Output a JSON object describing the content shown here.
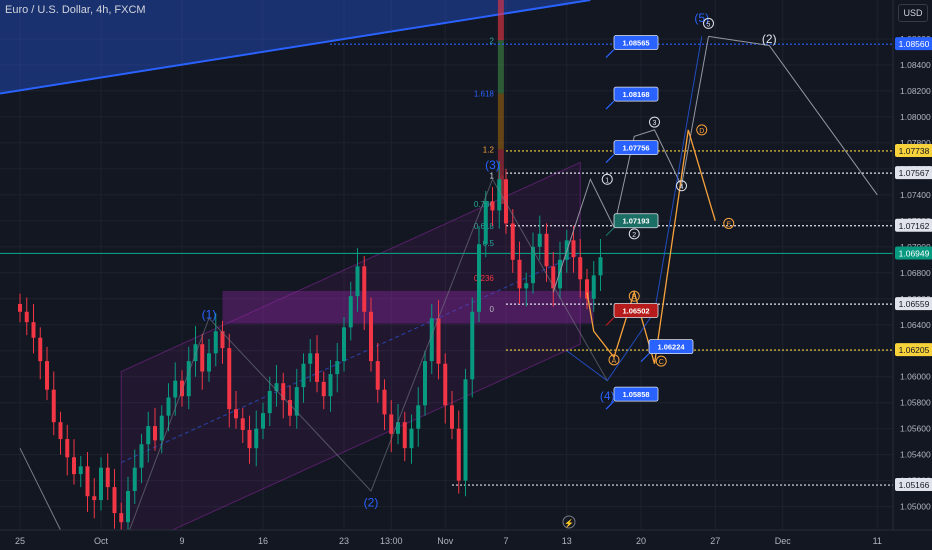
{
  "header": {
    "title": "Euro / U.S. Dollar, 4h, FXCM",
    "currency": "USD"
  },
  "colors": {
    "bg": "#131722",
    "up": "#089981",
    "down": "#f23645",
    "blue": "#2962ff",
    "orange": "#f7a23b",
    "white": "#e0e3eb",
    "purple": "#9c27b0",
    "grid": "#1e222d"
  },
  "chart_data": {
    "type": "candlestick",
    "title": "Euro / U.S. Dollar, 4h, FXCM",
    "ylabel": "USD",
    "ylim": [
      1.0482,
      1.089
    ],
    "price_ticks": [
      "1.08600",
      "1.08400",
      "1.08200",
      "1.08000",
      "1.07800",
      "1.07600",
      "1.07400",
      "1.07200",
      "1.07000",
      "1.06800",
      "1.06600",
      "1.06400",
      "1.06200",
      "1.06000",
      "1.05800",
      "1.05600",
      "1.05400",
      "1.05200",
      "1.05000"
    ],
    "time_ticks": [
      {
        "label": "25",
        "idx": 0
      },
      {
        "label": "Oct",
        "idx": 12
      },
      {
        "label": "9",
        "idx": 24
      },
      {
        "label": "16",
        "idx": 36
      },
      {
        "label": "23",
        "idx": 48
      },
      {
        "label": "13:00",
        "idx": 55
      },
      {
        "label": "Nov",
        "idx": 63
      },
      {
        "label": "7",
        "idx": 72
      },
      {
        "label": "13",
        "idx": 81
      },
      {
        "label": "20",
        "idx": 92
      },
      {
        "label": "27",
        "idx": 103
      },
      {
        "label": "Dec",
        "idx": 113
      },
      {
        "label": "11",
        "idx": 127
      }
    ],
    "candles_anchor": {
      "start_idx": 0,
      "x_step_hint": "time index"
    },
    "close_series": [
      1.065,
      1.0642,
      1.063,
      1.0612,
      1.059,
      1.0565,
      1.0552,
      1.0538,
      1.0525,
      1.0531,
      1.0508,
      1.0505,
      1.053,
      1.0515,
      1.0495,
      1.0488,
      1.0512,
      1.053,
      1.0548,
      1.0562,
      1.0551,
      1.057,
      1.0584,
      1.0597,
      1.0585,
      1.0612,
      1.0625,
      1.0604,
      1.0618,
      1.0635,
      1.0622,
      1.0575,
      1.0568,
      1.0559,
      1.0545,
      1.056,
      1.0572,
      1.0589,
      1.0595,
      1.0582,
      1.057,
      1.0592,
      1.061,
      1.0618,
      1.0596,
      1.0585,
      1.0602,
      1.0612,
      1.0638,
      1.0662,
      1.0685,
      1.065,
      1.0612,
      1.059,
      1.0571,
      1.0556,
      1.0565,
      1.0545,
      1.056,
      1.0578,
      1.0612,
      1.0645,
      1.061,
      1.0578,
      1.056,
      1.052,
      1.0598,
      1.065,
      1.0702,
      1.0735,
      1.0728,
      1.0752,
      1.0718,
      1.069,
      1.0668,
      1.0672,
      1.07,
      1.071,
      1.0685,
      1.0668,
      1.069,
      1.0705,
      1.0692,
      1.0675,
      1.066,
      1.0678,
      1.0692
    ],
    "levels": [
      {
        "price": 1.0856,
        "label": "1.08560",
        "color": "#2962ff",
        "style": "dotted"
      },
      {
        "price": 1.07738,
        "label": "1.07738",
        "color": "#f7d23b",
        "style": "dotted"
      },
      {
        "price": 1.07567,
        "label": "1.07567",
        "color": "#e0e3eb",
        "style": "dotted"
      },
      {
        "price": 1.07162,
        "label": "1.07162",
        "color": "#e0e3eb",
        "style": "dotted"
      },
      {
        "price": 1.06949,
        "label": "1.06949",
        "color": "#089981",
        "style": "solid"
      },
      {
        "price": 1.06559,
        "label": "1.06559",
        "color": "#e0e3eb",
        "style": "dotted"
      },
      {
        "price": 1.06205,
        "label": "1.06205",
        "color": "#f7d23b",
        "style": "dotted"
      },
      {
        "price": 1.05166,
        "label": "1.05166",
        "color": "#e0e3eb",
        "style": "dotted"
      }
    ],
    "fib_labels": [
      {
        "text": "2",
        "price": 1.0859
      },
      {
        "text": "1.618",
        "price": 1.0818
      },
      {
        "text": "1.2",
        "price": 1.0775
      },
      {
        "text": "1",
        "price": 1.0755
      },
      {
        "text": "0.786",
        "price": 1.0733
      },
      {
        "text": "0.618",
        "price": 1.0716
      },
      {
        "text": "0.5",
        "price": 1.0703
      },
      {
        "text": "0.236",
        "price": 1.0676
      },
      {
        "text": "0",
        "price": 1.0652
      }
    ],
    "target_callouts": [
      {
        "text": "1.08565",
        "price": 1.08565,
        "color": "#2962ff"
      },
      {
        "text": "1.08168",
        "price": 1.08168,
        "color": "#2962ff"
      },
      {
        "text": "1.07756",
        "price": 1.07756,
        "color": "#2962ff"
      },
      {
        "text": "1.07193",
        "price": 1.07193,
        "color": "#1b6e64"
      },
      {
        "text": "1.06502",
        "price": 1.06502,
        "color": "#b71c1c"
      },
      {
        "text": "1.06224",
        "price": 1.06224,
        "color": "#2962ff"
      },
      {
        "text": "1.05858",
        "price": 1.05858,
        "color": "#2962ff"
      }
    ],
    "wave_labels": [
      {
        "text": "(1)",
        "color": "#2962ff",
        "price": 1.0645,
        "idx": 28
      },
      {
        "text": "(2)",
        "color": "#2962ff",
        "price": 1.05,
        "idx": 52
      },
      {
        "text": "(3)",
        "color": "#2962ff",
        "price": 1.076,
        "idx": 70
      },
      {
        "text": "(4)",
        "color": "#2962ff",
        "price": 1.0582,
        "idx": 87
      },
      {
        "text": "(5)",
        "color": "#2962ff",
        "price": 1.0873,
        "idx": 101
      },
      {
        "text": "(2)",
        "color": "#e0e3eb",
        "price": 1.0857,
        "idx": 111
      },
      {
        "text": "1",
        "color": "#e0e3eb",
        "price": 1.0752,
        "idx": 87,
        "circled": true
      },
      {
        "text": "2",
        "color": "#e0e3eb",
        "price": 1.071,
        "idx": 91,
        "circled": true
      },
      {
        "text": "3",
        "color": "#e0e3eb",
        "price": 1.0796,
        "idx": 94,
        "circled": true
      },
      {
        "text": "4",
        "color": "#e0e3eb",
        "price": 1.0747,
        "idx": 98,
        "circled": true
      },
      {
        "text": "5",
        "color": "#e0e3eb",
        "price": 1.0872,
        "idx": 102,
        "circled": true
      },
      {
        "text": "A",
        "color": "#f7a23b",
        "price": 1.0613,
        "idx": 88,
        "circled": true
      },
      {
        "text": "B",
        "color": "#f7a23b",
        "price": 1.0662,
        "idx": 91,
        "circled": true
      },
      {
        "text": "C",
        "color": "#f7a23b",
        "price": 1.0612,
        "idx": 95,
        "circled": true
      },
      {
        "text": "D",
        "color": "#f7a23b",
        "price": 1.079,
        "idx": 101,
        "circled": true
      },
      {
        "text": "E",
        "color": "#f7a23b",
        "price": 1.0718,
        "idx": 105,
        "circled": true
      }
    ]
  }
}
